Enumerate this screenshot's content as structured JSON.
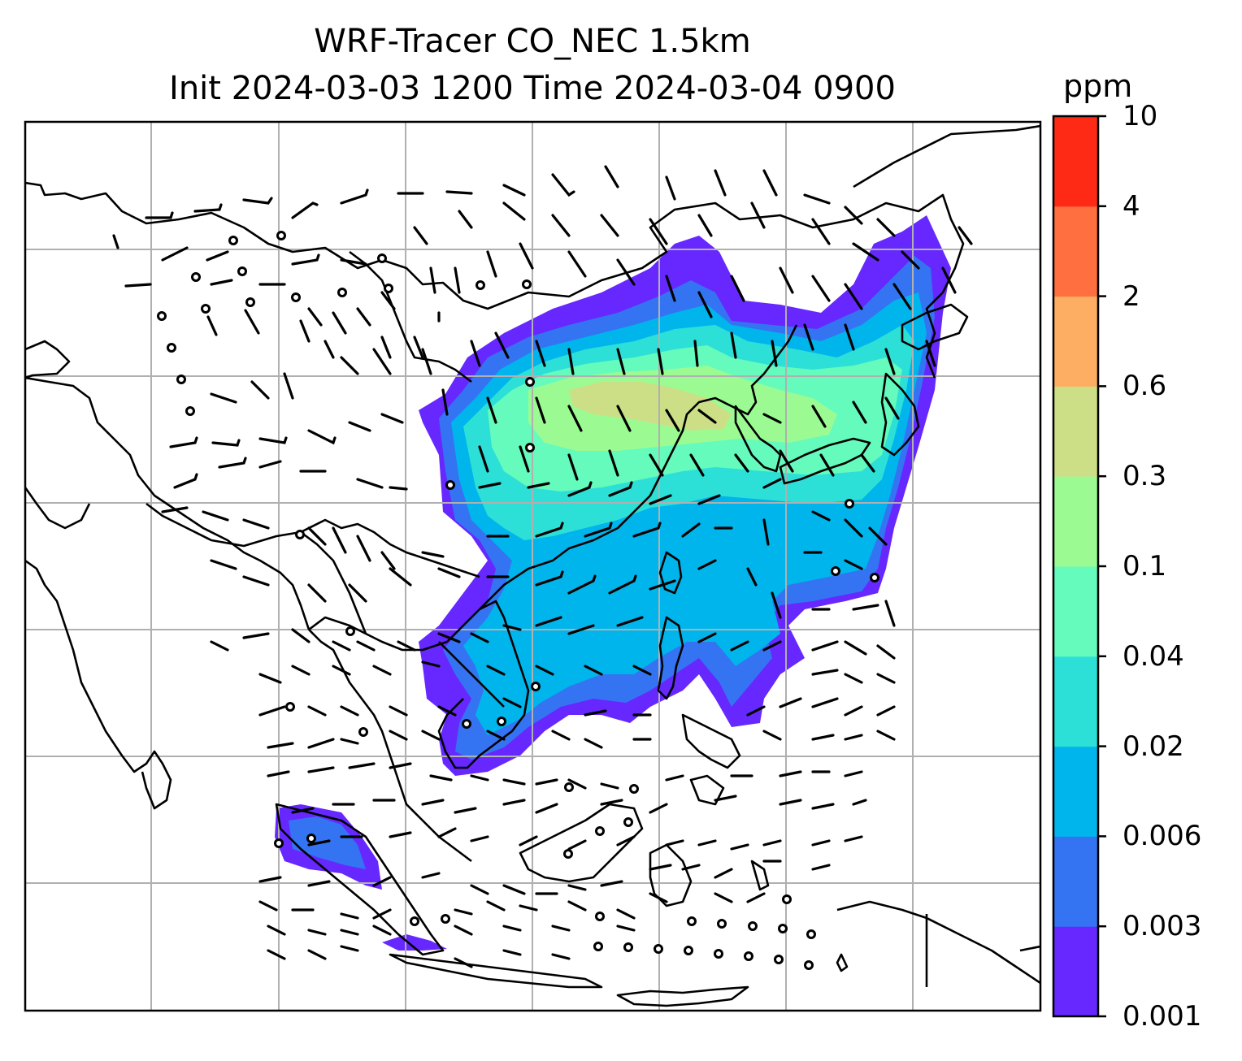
{
  "title": {
    "line1": "WRF-Tracer CO_NEC 1.5km",
    "line2": "Init 2024-03-03 1200 Time 2024-03-04 0900"
  },
  "colorbar": {
    "unit": "ppm",
    "tick_labels": [
      "0.001",
      "0.003",
      "0.006",
      "0.02",
      "0.04",
      "0.1",
      "0.3",
      "0.6",
      "2",
      "4",
      "10"
    ],
    "colors": [
      "#6628ff",
      "#3474f3",
      "#00b5eb",
      "#2ce0d7",
      "#64fbbd",
      "#9bfb92",
      "#ccdf86",
      "#feae62",
      "#ff6f3f",
      "#ff2a16"
    ]
  },
  "map": {
    "gridlines": true,
    "coastline_color": "#000000",
    "grid_color": "#b0b0b0"
  }
}
